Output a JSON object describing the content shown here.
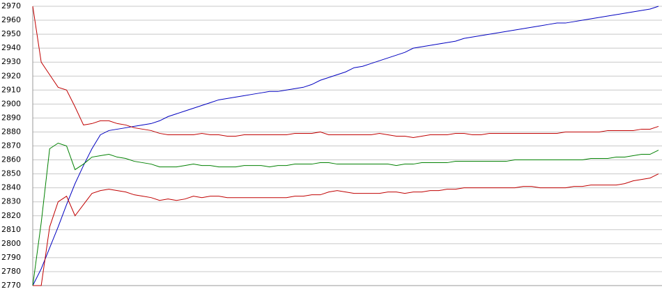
{
  "chart_data": {
    "type": "line",
    "categories": [
      null,
      null,
      null,
      null,
      null,
      null,
      null,
      null,
      null,
      null,
      null,
      null,
      null,
      null,
      null,
      null,
      null,
      null,
      null,
      null,
      null,
      null,
      null,
      null,
      null,
      null,
      null,
      null,
      null,
      null,
      null,
      null,
      null,
      null,
      null,
      null,
      null,
      null,
      null,
      null,
      null,
      null,
      null,
      null,
      null,
      null,
      null,
      null,
      null,
      null,
      null,
      null,
      null,
      null,
      null,
      null,
      null,
      null,
      null,
      null,
      null,
      null,
      null,
      null,
      null,
      null,
      null,
      null,
      null,
      null,
      null,
      null,
      null,
      null,
      null
    ],
    "series": [
      {
        "color": "#0000c0",
        "values": [
          2770,
          2782,
          2797,
          2812,
          2828,
          2843,
          2856,
          2868,
          2878,
          2881,
          2882,
          2883,
          2884,
          2885,
          2886,
          2888,
          2891,
          2893,
          2895,
          2897,
          2899,
          2901,
          2903,
          2904,
          2905,
          2906,
          2907,
          2908,
          2909,
          2909,
          2910,
          2911,
          2912,
          2914,
          2917,
          2919,
          2921,
          2923,
          2926,
          2927,
          2929,
          2931,
          2933,
          2935,
          2937,
          2940,
          2941,
          2942,
          2943,
          2944,
          2945,
          2947,
          2948,
          2949,
          2950,
          2951,
          2952,
          2953,
          2954,
          2955,
          2956,
          2957,
          2958,
          2958,
          2959,
          2960,
          2961,
          2962,
          2963,
          2964,
          2965,
          2966,
          2967,
          2968,
          2970
        ]
      },
      {
        "color": "#c00000",
        "values": [
          2970,
          2930,
          2921,
          2912,
          2910,
          2898,
          2885,
          2886,
          2888,
          2888,
          2886,
          2885,
          2883,
          2882,
          2881,
          2879,
          2878,
          2878,
          2878,
          2878,
          2879,
          2878,
          2878,
          2877,
          2877,
          2878,
          2878,
          2878,
          2878,
          2878,
          2878,
          2879,
          2879,
          2879,
          2880,
          2878,
          2878,
          2878,
          2878,
          2878,
          2878,
          2879,
          2878,
          2877,
          2877,
          2876,
          2877,
          2878,
          2878,
          2878,
          2879,
          2879,
          2878,
          2878,
          2879,
          2879,
          2879,
          2879,
          2879,
          2879,
          2879,
          2879,
          2879,
          2880,
          2880,
          2880,
          2880,
          2880,
          2881,
          2881,
          2881,
          2881,
          2882,
          2882,
          2884
        ]
      },
      {
        "color": "#008000",
        "values": [
          2770,
          2815,
          2868,
          2872,
          2870,
          2853,
          2857,
          2862,
          2863,
          2864,
          2862,
          2861,
          2859,
          2858,
          2857,
          2855,
          2855,
          2855,
          2856,
          2857,
          2856,
          2856,
          2855,
          2855,
          2855,
          2856,
          2856,
          2856,
          2855,
          2856,
          2856,
          2857,
          2857,
          2857,
          2858,
          2858,
          2857,
          2857,
          2857,
          2857,
          2857,
          2857,
          2857,
          2856,
          2857,
          2857,
          2858,
          2858,
          2858,
          2858,
          2859,
          2859,
          2859,
          2859,
          2859,
          2859,
          2859,
          2860,
          2860,
          2860,
          2860,
          2860,
          2860,
          2860,
          2860,
          2860,
          2861,
          2861,
          2861,
          2862,
          2862,
          2863,
          2864,
          2864,
          2867
        ]
      },
      {
        "color": "#c00000",
        "values": [
          2770,
          2770,
          2812,
          2830,
          2834,
          2820,
          2828,
          2836,
          2838,
          2839,
          2838,
          2837,
          2835,
          2834,
          2833,
          2831,
          2832,
          2831,
          2832,
          2834,
          2833,
          2834,
          2834,
          2833,
          2833,
          2833,
          2833,
          2833,
          2833,
          2833,
          2833,
          2834,
          2834,
          2835,
          2835,
          2837,
          2838,
          2837,
          2836,
          2836,
          2836,
          2836,
          2837,
          2837,
          2836,
          2837,
          2837,
          2838,
          2838,
          2839,
          2839,
          2840,
          2840,
          2840,
          2840,
          2840,
          2840,
          2840,
          2841,
          2841,
          2840,
          2840,
          2840,
          2840,
          2841,
          2841,
          2842,
          2842,
          2842,
          2842,
          2843,
          2845,
          2846,
          2847,
          2850
        ]
      }
    ],
    "ylim": [
      2770,
      2970
    ],
    "yticks": [
      2770,
      2780,
      2790,
      2800,
      2810,
      2820,
      2830,
      2840,
      2850,
      2860,
      2870,
      2880,
      2890,
      2900,
      2910,
      2920,
      2930,
      2940,
      2950,
      2960,
      2970
    ],
    "grid": true
  }
}
